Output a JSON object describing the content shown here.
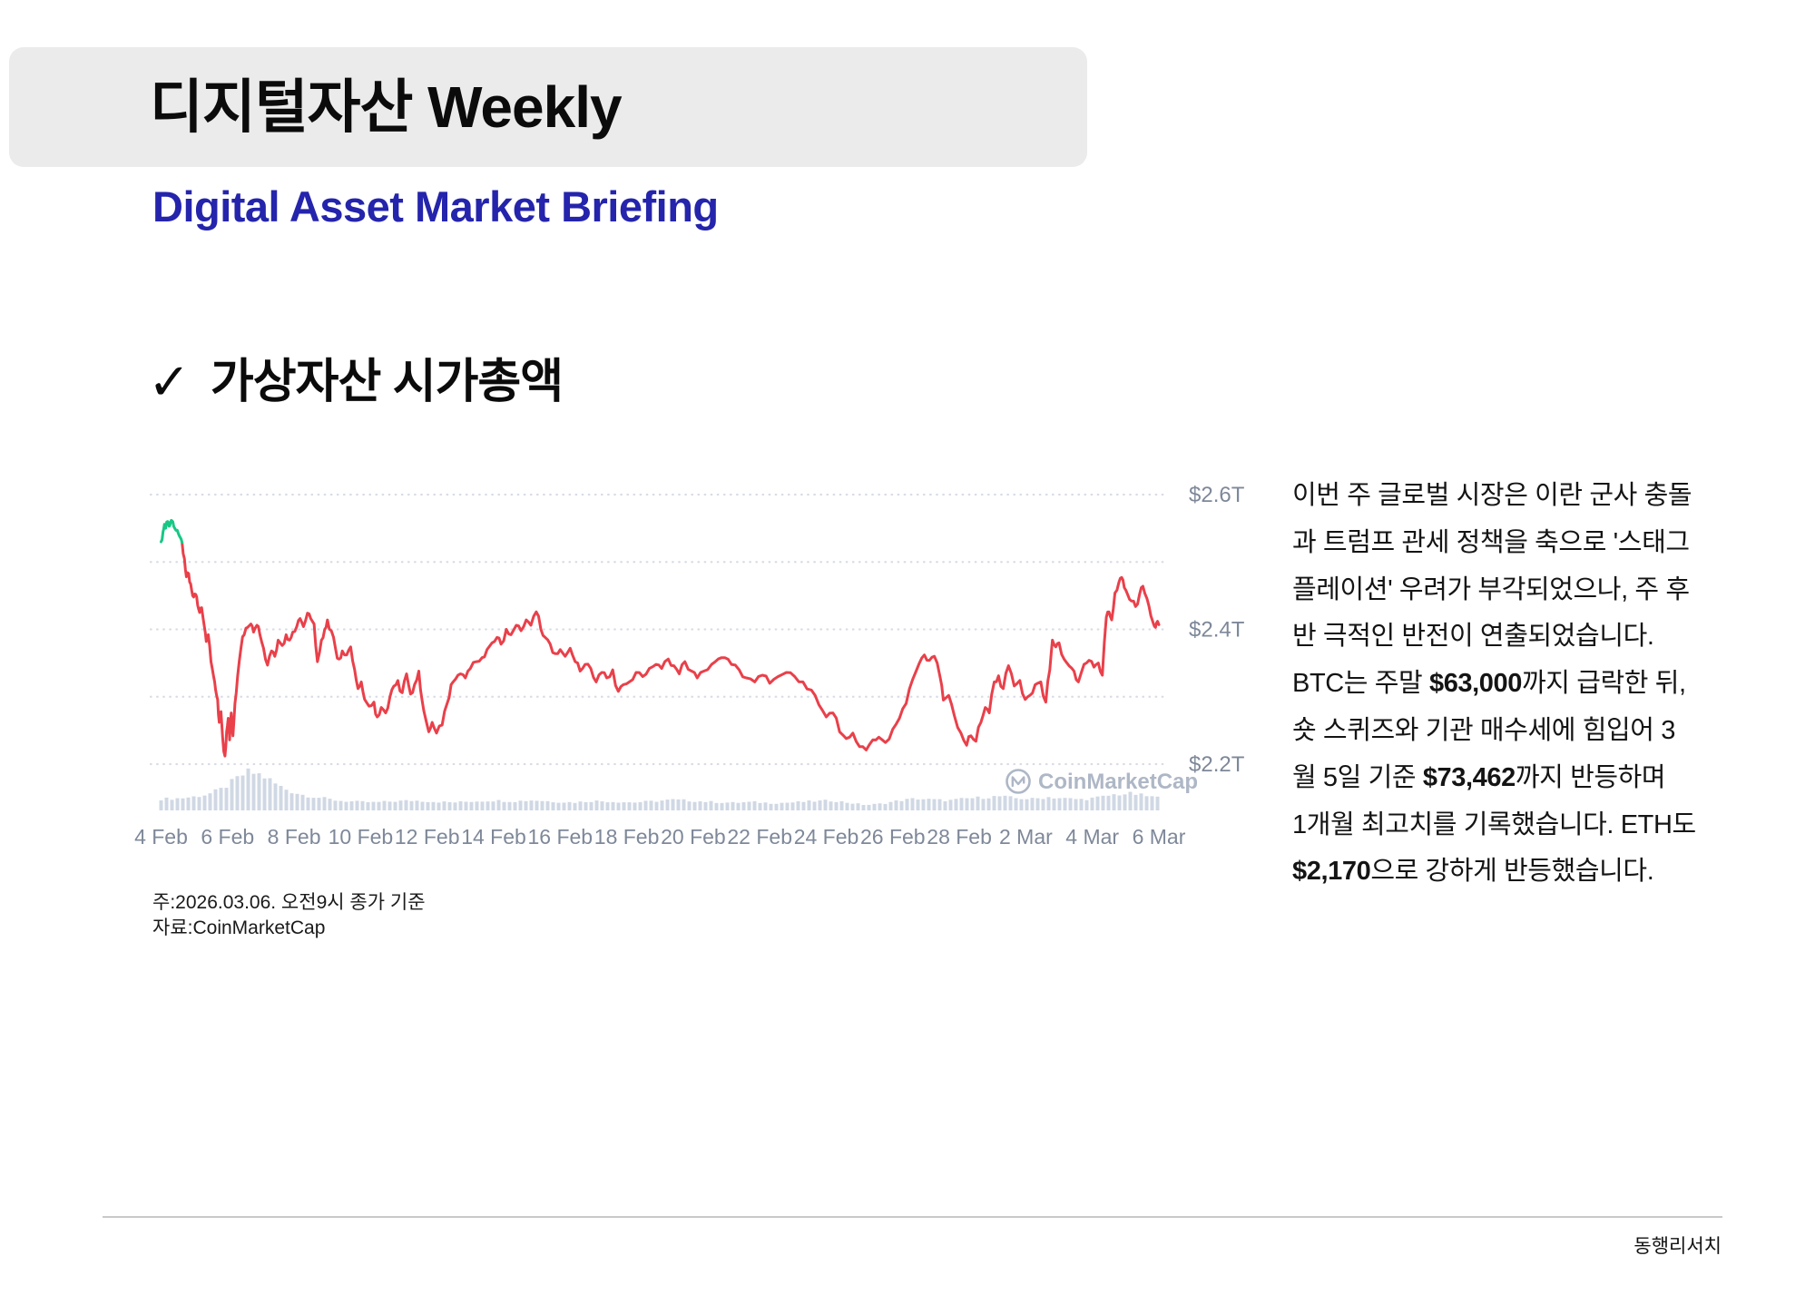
{
  "header": {
    "title": "디지털자산 Weekly",
    "subtitle": "Digital Asset Market Briefing",
    "box_color": "#EBEBEB",
    "subtitle_color": "#2424AC"
  },
  "section": {
    "check": "✓",
    "title": "가상자산 시가총액"
  },
  "chart_data": {
    "type": "line",
    "title": "",
    "description": "Global crypto total market cap, 4 Feb - 6 Mar, CoinMarketCap style",
    "unit": "$T",
    "x_axis": {
      "start_label": "4 Feb",
      "end_label": "6 Mar",
      "days_span": 30,
      "tick_step_days": 2
    },
    "x_tick_labels": [
      "4 Feb",
      "6 Feb",
      "8 Feb",
      "10 Feb",
      "12 Feb",
      "14 Feb",
      "16 Feb",
      "18 Feb",
      "20 Feb",
      "22 Feb",
      "24 Feb",
      "26 Feb",
      "28 Feb",
      "2 Mar",
      "4 Mar",
      "6 Mar"
    ],
    "y_axis": {
      "gridline_values": [
        2.6,
        2.5,
        2.4,
        2.3,
        2.2
      ],
      "labeled_values": [
        2.6,
        2.4,
        2.2
      ]
    },
    "y_tick_labels": [
      "$2.6T",
      "$2.4T",
      "$2.2T"
    ],
    "legend": "none",
    "grid": "dotted horizontal",
    "watermark": "CoinMarketCap",
    "colors": {
      "line_down": "#E9404A",
      "line_up_opening": "#17C784",
      "volume_bar": "#CBD4E2",
      "gridline": "#D8DCE5",
      "axis_label": "#7E8899",
      "watermark": "#AEB7C6"
    },
    "series": [
      {
        "name": "Total market cap ($T)",
        "green_until_day": 0.65,
        "points": [
          [
            0,
            2.53
          ],
          [
            0.06,
            2.545
          ],
          [
            0.1,
            2.556
          ],
          [
            0.14,
            2.55
          ],
          [
            0.2,
            2.56
          ],
          [
            0.24,
            2.553
          ],
          [
            0.28,
            2.558
          ],
          [
            0.33,
            2.561
          ],
          [
            0.38,
            2.553
          ],
          [
            0.45,
            2.547
          ],
          [
            0.52,
            2.542
          ],
          [
            0.58,
            2.536
          ],
          [
            0.63,
            2.529
          ],
          [
            0.7,
            2.505
          ],
          [
            0.76,
            2.478
          ],
          [
            0.8,
            2.484
          ],
          [
            0.86,
            2.47
          ],
          [
            0.92,
            2.458
          ],
          [
            0.98,
            2.448
          ],
          [
            1.04,
            2.452
          ],
          [
            1.1,
            2.436
          ],
          [
            1.16,
            2.425
          ],
          [
            1.22,
            2.432
          ],
          [
            1.3,
            2.405
          ],
          [
            1.36,
            2.382
          ],
          [
            1.42,
            2.392
          ],
          [
            1.5,
            2.352
          ],
          [
            1.58,
            2.33
          ],
          [
            1.64,
            2.31
          ],
          [
            1.7,
            2.296
          ],
          [
            1.75,
            2.262
          ],
          [
            1.8,
            2.278
          ],
          [
            1.85,
            2.24
          ],
          [
            1.92,
            2.212
          ],
          [
            1.97,
            2.248
          ],
          [
            2.02,
            2.268
          ],
          [
            2.06,
            2.236
          ],
          [
            2.11,
            2.276
          ],
          [
            2.16,
            2.242
          ],
          [
            2.22,
            2.29
          ],
          [
            2.3,
            2.33
          ],
          [
            2.4,
            2.372
          ],
          [
            2.5,
            2.392
          ],
          [
            2.6,
            2.403
          ],
          [
            2.7,
            2.408
          ],
          [
            2.78,
            2.396
          ],
          [
            2.88,
            2.406
          ],
          [
            2.97,
            2.392
          ],
          [
            3.08,
            2.372
          ],
          [
            3.2,
            2.347
          ],
          [
            3.32,
            2.368
          ],
          [
            3.42,
            2.36
          ],
          [
            3.52,
            2.384
          ],
          [
            3.64,
            2.376
          ],
          [
            3.76,
            2.392
          ],
          [
            3.86,
            2.384
          ],
          [
            3.96,
            2.396
          ],
          [
            4.08,
            2.404
          ],
          [
            4.18,
            2.416
          ],
          [
            4.28,
            2.404
          ],
          [
            4.4,
            2.424
          ],
          [
            4.5,
            2.416
          ],
          [
            4.6,
            2.408
          ],
          [
            4.7,
            2.352
          ],
          [
            4.82,
            2.384
          ],
          [
            4.92,
            2.4
          ],
          [
            5.0,
            2.414
          ],
          [
            5.12,
            2.398
          ],
          [
            5.25,
            2.37
          ],
          [
            5.35,
            2.356
          ],
          [
            5.45,
            2.368
          ],
          [
            5.58,
            2.362
          ],
          [
            5.7,
            2.374
          ],
          [
            5.82,
            2.34
          ],
          [
            5.92,
            2.312
          ],
          [
            6.02,
            2.322
          ],
          [
            6.12,
            2.296
          ],
          [
            6.25,
            2.286
          ],
          [
            6.4,
            2.292
          ],
          [
            6.5,
            2.27
          ],
          [
            6.62,
            2.284
          ],
          [
            6.75,
            2.276
          ],
          [
            6.88,
            2.3
          ],
          [
            7.0,
            2.316
          ],
          [
            7.12,
            2.324
          ],
          [
            7.25,
            2.306
          ],
          [
            7.38,
            2.334
          ],
          [
            7.5,
            2.304
          ],
          [
            7.62,
            2.318
          ],
          [
            7.75,
            2.338
          ],
          [
            7.85,
            2.294
          ],
          [
            7.95,
            2.268
          ],
          [
            8.05,
            2.248
          ],
          [
            8.15,
            2.262
          ],
          [
            8.28,
            2.246
          ],
          [
            8.45,
            2.258
          ],
          [
            8.6,
            2.29
          ],
          [
            8.72,
            2.318
          ],
          [
            8.85,
            2.326
          ],
          [
            9.0,
            2.334
          ],
          [
            9.15,
            2.328
          ],
          [
            9.3,
            2.342
          ],
          [
            9.48,
            2.352
          ],
          [
            9.65,
            2.358
          ],
          [
            9.8,
            2.37
          ],
          [
            9.95,
            2.38
          ],
          [
            10.1,
            2.388
          ],
          [
            10.22,
            2.378
          ],
          [
            10.38,
            2.4
          ],
          [
            10.52,
            2.392
          ],
          [
            10.68,
            2.406
          ],
          [
            10.82,
            2.398
          ],
          [
            10.98,
            2.414
          ],
          [
            11.12,
            2.406
          ],
          [
            11.28,
            2.426
          ],
          [
            11.42,
            2.4
          ],
          [
            11.55,
            2.388
          ],
          [
            11.7,
            2.378
          ],
          [
            11.85,
            2.364
          ],
          [
            12.0,
            2.37
          ],
          [
            12.15,
            2.36
          ],
          [
            12.3,
            2.372
          ],
          [
            12.45,
            2.352
          ],
          [
            12.6,
            2.338
          ],
          [
            12.75,
            2.348
          ],
          [
            12.92,
            2.342
          ],
          [
            13.08,
            2.322
          ],
          [
            13.25,
            2.336
          ],
          [
            13.4,
            2.328
          ],
          [
            13.58,
            2.34
          ],
          [
            13.75,
            2.308
          ],
          [
            13.9,
            2.318
          ],
          [
            14.08,
            2.322
          ],
          [
            14.28,
            2.336
          ],
          [
            14.48,
            2.33
          ],
          [
            14.68,
            2.342
          ],
          [
            14.88,
            2.348
          ],
          [
            15.05,
            2.342
          ],
          [
            15.25,
            2.356
          ],
          [
            15.42,
            2.346
          ],
          [
            15.58,
            2.334
          ],
          [
            15.75,
            2.352
          ],
          [
            15.95,
            2.338
          ],
          [
            16.12,
            2.328
          ],
          [
            16.32,
            2.338
          ],
          [
            16.55,
            2.348
          ],
          [
            16.75,
            2.356
          ],
          [
            16.95,
            2.358
          ],
          [
            17.15,
            2.348
          ],
          [
            17.38,
            2.34
          ],
          [
            17.6,
            2.328
          ],
          [
            17.85,
            2.322
          ],
          [
            18.08,
            2.332
          ],
          [
            18.3,
            2.32
          ],
          [
            18.55,
            2.33
          ],
          [
            18.8,
            2.336
          ],
          [
            19.05,
            2.33
          ],
          [
            19.3,
            2.322
          ],
          [
            19.55,
            2.31
          ],
          [
            19.78,
            2.288
          ],
          [
            20.0,
            2.27
          ],
          [
            20.2,
            2.276
          ],
          [
            20.4,
            2.248
          ],
          [
            20.6,
            2.238
          ],
          [
            20.8,
            2.246
          ],
          [
            21.0,
            2.226
          ],
          [
            21.2,
            2.221
          ],
          [
            21.4,
            2.236
          ],
          [
            21.58,
            2.24
          ],
          [
            21.78,
            2.232
          ],
          [
            22.0,
            2.252
          ],
          [
            22.2,
            2.268
          ],
          [
            22.4,
            2.29
          ],
          [
            22.6,
            2.326
          ],
          [
            22.8,
            2.35
          ],
          [
            22.95,
            2.362
          ],
          [
            23.1,
            2.354
          ],
          [
            23.25,
            2.36
          ],
          [
            23.42,
            2.33
          ],
          [
            23.52,
            2.295
          ],
          [
            23.68,
            2.302
          ],
          [
            23.85,
            2.272
          ],
          [
            24.05,
            2.246
          ],
          [
            24.22,
            2.228
          ],
          [
            24.35,
            2.242
          ],
          [
            24.5,
            2.234
          ],
          [
            24.65,
            2.262
          ],
          [
            24.78,
            2.284
          ],
          [
            24.9,
            2.276
          ],
          [
            25.05,
            2.322
          ],
          [
            25.18,
            2.331
          ],
          [
            25.32,
            2.312
          ],
          [
            25.48,
            2.346
          ],
          [
            25.65,
            2.316
          ],
          [
            25.82,
            2.324
          ],
          [
            25.98,
            2.296
          ],
          [
            26.12,
            2.302
          ],
          [
            26.28,
            2.318
          ],
          [
            26.45,
            2.322
          ],
          [
            26.6,
            2.292
          ],
          [
            26.72,
            2.34
          ],
          [
            26.8,
            2.384
          ],
          [
            26.9,
            2.374
          ],
          [
            27.0,
            2.38
          ],
          [
            27.15,
            2.356
          ],
          [
            27.3,
            2.346
          ],
          [
            27.45,
            2.338
          ],
          [
            27.58,
            2.322
          ],
          [
            27.75,
            2.348
          ],
          [
            27.9,
            2.354
          ],
          [
            28.05,
            2.344
          ],
          [
            28.18,
            2.35
          ],
          [
            28.3,
            2.332
          ],
          [
            28.42,
            2.418
          ],
          [
            28.5,
            2.426
          ],
          [
            28.58,
            2.414
          ],
          [
            28.68,
            2.454
          ],
          [
            28.8,
            2.47
          ],
          [
            28.88,
            2.477
          ],
          [
            28.96,
            2.462
          ],
          [
            29.06,
            2.452
          ],
          [
            29.18,
            2.442
          ],
          [
            29.3,
            2.434
          ],
          [
            29.42,
            2.452
          ],
          [
            29.52,
            2.464
          ],
          [
            29.64,
            2.446
          ],
          [
            29.76,
            2.42
          ],
          [
            29.84,
            2.408
          ],
          [
            29.9,
            2.403
          ],
          [
            29.96,
            2.412
          ],
          [
            30.0,
            2.407
          ]
        ]
      }
    ],
    "volume_profile": [
      [
        0,
        0.3
      ],
      [
        0.6,
        0.32
      ],
      [
        1.0,
        0.36
      ],
      [
        1.4,
        0.42
      ],
      [
        1.8,
        0.55
      ],
      [
        2.1,
        0.72
      ],
      [
        2.4,
        0.9
      ],
      [
        2.6,
        1.0
      ],
      [
        2.9,
        0.96
      ],
      [
        3.2,
        0.84
      ],
      [
        3.5,
        0.66
      ],
      [
        3.9,
        0.5
      ],
      [
        4.3,
        0.4
      ],
      [
        4.8,
        0.33
      ],
      [
        5.3,
        0.26
      ],
      [
        5.8,
        0.23
      ],
      [
        6.4,
        0.21
      ],
      [
        7.0,
        0.24
      ],
      [
        7.6,
        0.26
      ],
      [
        8.2,
        0.23
      ],
      [
        8.8,
        0.21
      ],
      [
        9.4,
        0.24
      ],
      [
        10.0,
        0.26
      ],
      [
        10.6,
        0.24
      ],
      [
        11.2,
        0.27
      ],
      [
        11.8,
        0.23
      ],
      [
        12.4,
        0.21
      ],
      [
        13.0,
        0.25
      ],
      [
        13.6,
        0.23
      ],
      [
        14.2,
        0.21
      ],
      [
        14.8,
        0.24
      ],
      [
        15.4,
        0.28
      ],
      [
        16.0,
        0.25
      ],
      [
        16.6,
        0.22
      ],
      [
        17.2,
        0.2
      ],
      [
        17.8,
        0.22
      ],
      [
        18.4,
        0.19
      ],
      [
        19.0,
        0.21
      ],
      [
        19.6,
        0.24
      ],
      [
        20.2,
        0.26
      ],
      [
        20.7,
        0.2
      ],
      [
        21.2,
        0.14
      ],
      [
        21.7,
        0.18
      ],
      [
        22.2,
        0.26
      ],
      [
        22.7,
        0.31
      ],
      [
        23.2,
        0.28
      ],
      [
        23.7,
        0.26
      ],
      [
        24.2,
        0.31
      ],
      [
        24.7,
        0.34
      ],
      [
        25.2,
        0.37
      ],
      [
        25.7,
        0.32
      ],
      [
        26.2,
        0.3
      ],
      [
        26.7,
        0.35
      ],
      [
        27.2,
        0.31
      ],
      [
        27.7,
        0.29
      ],
      [
        28.2,
        0.34
      ],
      [
        28.7,
        0.42
      ],
      [
        29.2,
        0.44
      ],
      [
        29.6,
        0.38
      ],
      [
        30.0,
        0.33
      ]
    ]
  },
  "commentary": {
    "lines": [
      "이번 주 글로벌 시장은 이란 군사 충돌",
      "과 트럼프 관세 정책을 축으로 '스태그",
      "플레이션' 우려가 부각되었으나, 주 후",
      "반 극적인 반전이 연출되었습니다.",
      "BTC는 주말 **$63,000**까지 급락한 뒤,",
      "숏 스퀴즈와 기관 매수세에 힘입어 3",
      "월 5일 기준 **$73,462**까지 반등하며",
      "1개월 최고치를 기록했습니다. ETH도",
      "**$2,170**으로 강하게 반등했습니다."
    ]
  },
  "notes": {
    "lines": [
      "주:2026.03.06. 오전9시 종가 기준",
      "자료:CoinMarketCap"
    ]
  },
  "footer": {
    "brand": "동행리서치"
  }
}
